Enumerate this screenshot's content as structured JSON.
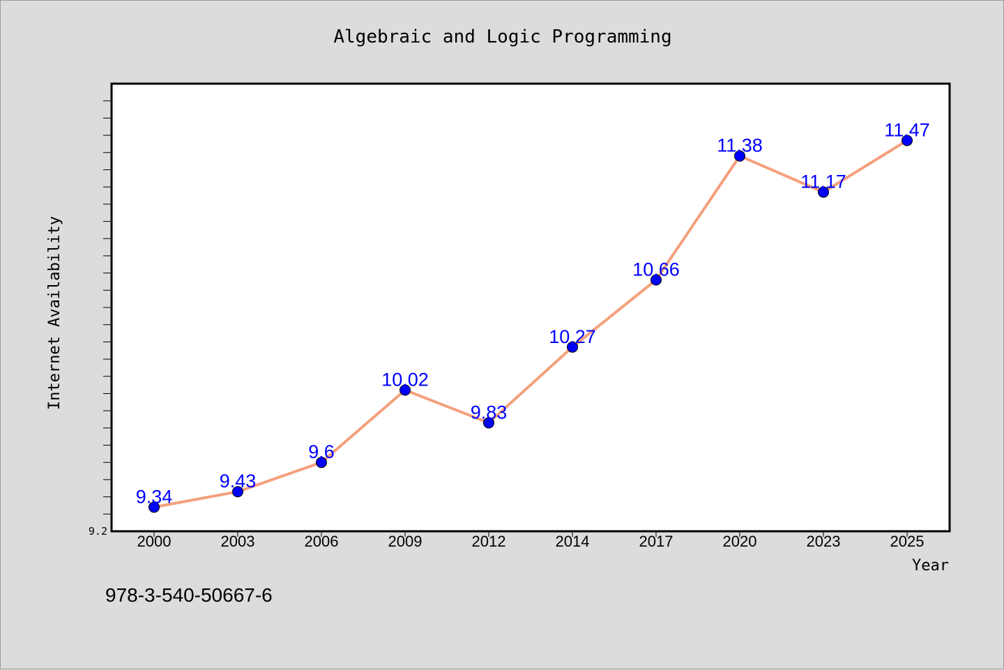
{
  "chart_data": {
    "type": "line",
    "title": "Algebraic and Logic Programming",
    "xlabel": "Year",
    "ylabel": "Internet Availability",
    "categories": [
      "2000",
      "2003",
      "2006",
      "2009",
      "2012",
      "2014",
      "2017",
      "2020",
      "2023",
      "2025"
    ],
    "series": [
      {
        "values": [
          9.34,
          9.43,
          9.6,
          10.02,
          9.83,
          10.27,
          10.66,
          11.38,
          11.17,
          11.47
        ],
        "color": "#f4a07c",
        "marker_color": "#0000ff"
      }
    ],
    "data_labels": [
      "9.34",
      "9.43",
      "9.6",
      "10.02",
      "9.83",
      "10.27",
      "10.66",
      "11.38",
      "11.17",
      "11.47"
    ],
    "ytick_labels": [
      "9.2"
    ],
    "ylim": [
      9.2,
      11.8
    ],
    "grid": false,
    "legend": "none"
  },
  "footer": {
    "isbn": "978-3-540-50667-6"
  }
}
